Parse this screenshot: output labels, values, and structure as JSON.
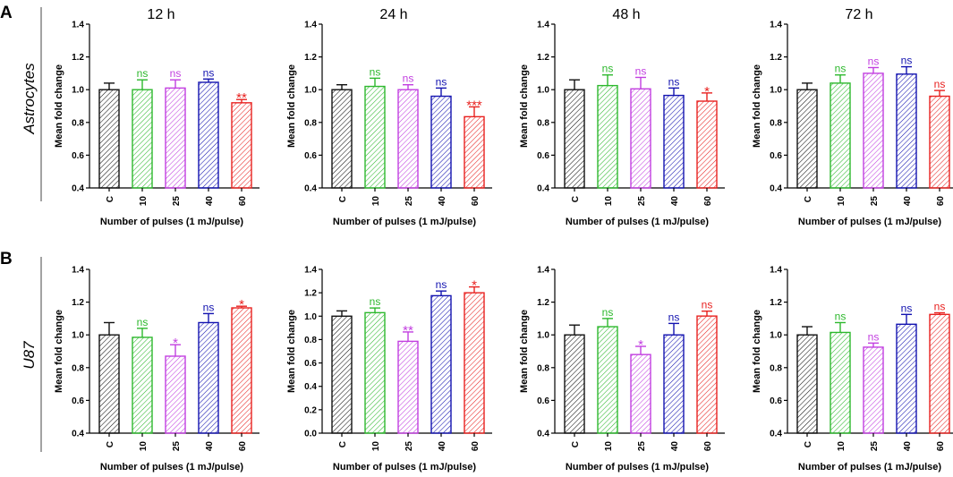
{
  "figure": {
    "row_labels": [
      "A",
      "B"
    ],
    "cell_lines": [
      "Astrocytes",
      "U87"
    ]
  },
  "colors": {
    "C": "#111111",
    "10": "#2db82d",
    "25": "#c23fe0",
    "40": "#1313b0",
    "60": "#e8211f"
  },
  "chart_data": [
    {
      "type": "bar",
      "row": "A",
      "cell_line": "Astrocytes",
      "title": "12 h",
      "categories": [
        "C",
        "10",
        "25",
        "40",
        "60"
      ],
      "values": [
        1.0,
        1.0,
        1.01,
        1.045,
        0.92
      ],
      "errors": [
        0.04,
        0.06,
        0.05,
        0.02,
        0.02
      ],
      "significance": [
        "",
        "ns",
        "ns",
        "ns",
        "**"
      ],
      "ylabel": "Mean fold change",
      "xlabel": "Number of pulses (1 mJ/pulse)",
      "ylim": [
        0.4,
        1.4
      ],
      "yticks": [
        "0.4",
        "0.6",
        "0.8",
        "1.0",
        "1.2",
        "1.4"
      ]
    },
    {
      "type": "bar",
      "row": "A",
      "cell_line": "Astrocytes",
      "title": "24 h",
      "categories": [
        "C",
        "10",
        "25",
        "40",
        "60"
      ],
      "values": [
        1.0,
        1.02,
        1.0,
        0.96,
        0.835
      ],
      "errors": [
        0.03,
        0.05,
        0.03,
        0.05,
        0.06
      ],
      "significance": [
        "",
        "ns",
        "ns",
        "ns",
        "***"
      ],
      "ylabel": "Mean fold change",
      "xlabel": "Number of pulses (1 mJ/pulse)",
      "ylim": [
        0.4,
        1.4
      ],
      "yticks": [
        "0.4",
        "0.6",
        "0.8",
        "1.0",
        "1.2",
        "1.4"
      ]
    },
    {
      "type": "bar",
      "row": "A",
      "cell_line": "Astrocytes",
      "title": "48 h",
      "categories": [
        "C",
        "10",
        "25",
        "40",
        "60"
      ],
      "values": [
        1.0,
        1.025,
        1.005,
        0.965,
        0.93
      ],
      "errors": [
        0.06,
        0.065,
        0.07,
        0.045,
        0.05
      ],
      "significance": [
        "",
        "ns",
        "ns",
        "ns",
        "*"
      ],
      "ylabel": "Mean fold change",
      "xlabel": "Number of pulses (1 mJ/pulse)",
      "ylim": [
        0.4,
        1.4
      ],
      "yticks": [
        "0.4",
        "0.6",
        "0.8",
        "1.0",
        "1.2",
        "1.4"
      ]
    },
    {
      "type": "bar",
      "row": "A",
      "cell_line": "Astrocytes",
      "title": "72 h",
      "categories": [
        "C",
        "10",
        "25",
        "40",
        "60"
      ],
      "values": [
        1.0,
        1.04,
        1.1,
        1.095,
        0.96
      ],
      "errors": [
        0.04,
        0.05,
        0.035,
        0.045,
        0.035
      ],
      "significance": [
        "",
        "ns",
        "ns",
        "ns",
        "ns"
      ],
      "ylabel": "Mean fold change",
      "xlabel": "Number of pulses (1 mJ/pulse)",
      "ylim": [
        0.4,
        1.4
      ],
      "yticks": [
        "0.4",
        "0.6",
        "0.8",
        "1.0",
        "1.2",
        "1.4"
      ]
    },
    {
      "type": "bar",
      "row": "B",
      "cell_line": "U87",
      "title": "",
      "categories": [
        "C",
        "10",
        "25",
        "40",
        "60"
      ],
      "values": [
        1.0,
        0.985,
        0.87,
        1.075,
        1.165
      ],
      "errors": [
        0.075,
        0.055,
        0.07,
        0.055,
        0.01
      ],
      "significance": [
        "",
        "ns",
        "*",
        "ns",
        "*"
      ],
      "ylabel": "Mean fold change",
      "xlabel": "Number of pulses (1 mJ/pulse)",
      "ylim": [
        0.4,
        1.4
      ],
      "yticks": [
        "0.4",
        "0.6",
        "0.8",
        "1.0",
        "1.2",
        "1.4"
      ]
    },
    {
      "type": "bar",
      "row": "B",
      "cell_line": "U87",
      "title": "",
      "categories": [
        "C",
        "10",
        "25",
        "40",
        "60"
      ],
      "values": [
        1.0,
        1.03,
        0.785,
        1.175,
        1.2
      ],
      "errors": [
        0.045,
        0.04,
        0.08,
        0.04,
        0.05
      ],
      "significance": [
        "",
        "ns",
        "**",
        "ns",
        "*"
      ],
      "ylabel": "Mean fold change",
      "xlabel": "Number of pulses (1 mJ/pulse)",
      "ylim": [
        0.0,
        1.4
      ],
      "yticks": [
        "0.0",
        "0.2",
        "0.4",
        "0.6",
        "0.8",
        "1.0",
        "1.2",
        "1.4"
      ]
    },
    {
      "type": "bar",
      "row": "B",
      "cell_line": "U87",
      "title": "",
      "categories": [
        "C",
        "10",
        "25",
        "40",
        "60"
      ],
      "values": [
        1.0,
        1.05,
        0.88,
        1.0,
        1.115
      ],
      "errors": [
        0.06,
        0.05,
        0.05,
        0.07,
        0.03
      ],
      "significance": [
        "",
        "ns",
        "*",
        "ns",
        "ns"
      ],
      "ylabel": "Mean fold change",
      "xlabel": "Number of pulses (1 mJ/pulse)",
      "ylim": [
        0.4,
        1.4
      ],
      "yticks": [
        "0.4",
        "0.6",
        "0.8",
        "1.0",
        "1.2",
        "1.4"
      ]
    },
    {
      "type": "bar",
      "row": "B",
      "cell_line": "U87",
      "title": "",
      "categories": [
        "C",
        "10",
        "25",
        "40",
        "60"
      ],
      "values": [
        1.0,
        1.015,
        0.925,
        1.065,
        1.125
      ],
      "errors": [
        0.05,
        0.06,
        0.025,
        0.06,
        0.01
      ],
      "significance": [
        "",
        "ns",
        "ns",
        "ns",
        "ns"
      ],
      "ylabel": "Mean fold change",
      "xlabel": "Number of pulses (1 mJ/pulse)",
      "ylim": [
        0.4,
        1.4
      ],
      "yticks": [
        "0.4",
        "0.6",
        "0.8",
        "1.0",
        "1.2",
        "1.4"
      ]
    }
  ]
}
